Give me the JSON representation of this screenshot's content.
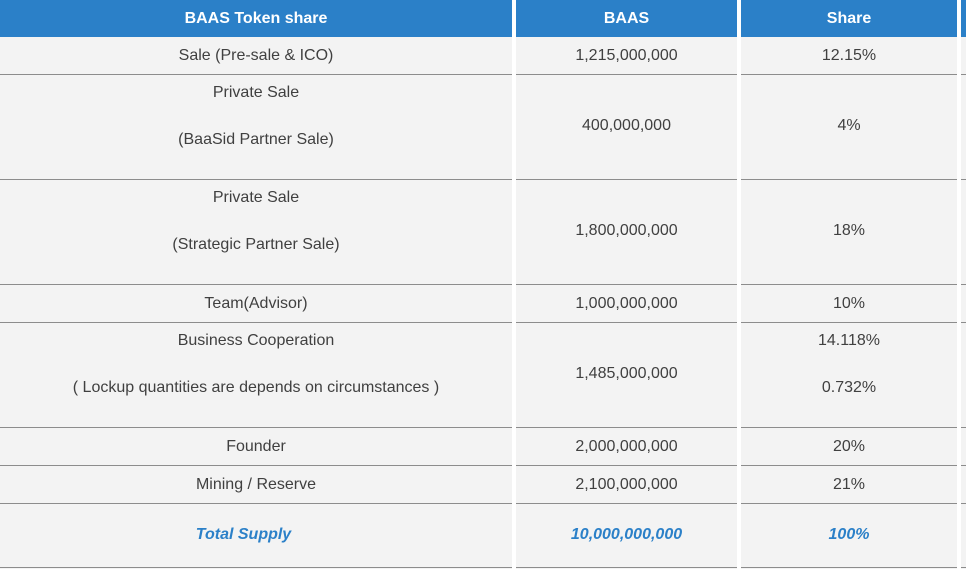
{
  "header": {
    "col1": "BAAS Token share",
    "col2": "BAAS",
    "col3": "Share"
  },
  "rows": [
    {
      "label": "Sale (Pre-sale & ICO)",
      "amount": "1,215,000,000",
      "share": "12.15%"
    },
    {
      "label": "Private Sale",
      "sublabel": "(BaaSid Partner Sale)",
      "amount": "400,000,000",
      "share": "4%"
    },
    {
      "label": "Private Sale",
      "sublabel": "(Strategic Partner Sale)",
      "amount": "1,800,000,000",
      "share": "18%"
    },
    {
      "label": "Team(Advisor)",
      "amount": "1,000,000,000",
      "share": "10%"
    },
    {
      "label": "Business Cooperation",
      "sublabel": "( Lockup quantities are depends on circumstances )",
      "amount": "1,485,000,000",
      "share": "14.118%",
      "share2": "0.732%"
    },
    {
      "label": "Founder",
      "amount": "2,000,000,000",
      "share": "20%"
    },
    {
      "label": "Mining / Reserve",
      "amount": "2,100,000,000",
      "share": "21%"
    }
  ],
  "total": {
    "label": "Total Supply",
    "amount": "10,000,000,000",
    "share": "100%"
  },
  "colors": {
    "header_bg": "#2b80c8",
    "row_bg": "#f3f3f3",
    "total_text": "#2b80c8"
  }
}
